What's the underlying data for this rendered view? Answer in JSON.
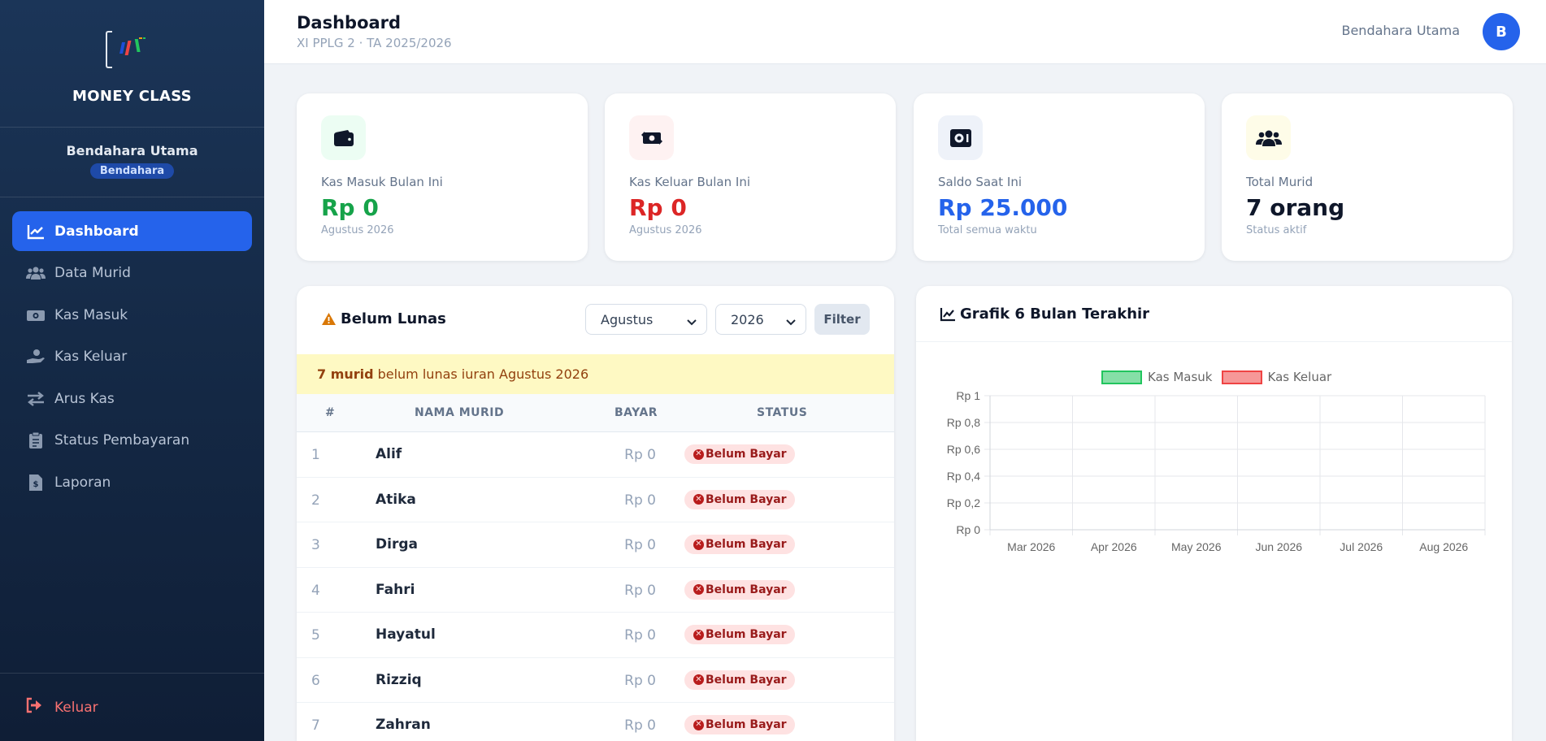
{
  "app": {
    "brand": "MONEY CLASS",
    "user_name": "Bendahara Utama",
    "role": "Bendahara"
  },
  "nav": [
    {
      "label": "Dashboard",
      "icon": "chart-line-icon",
      "active": true
    },
    {
      "label": "Data Murid",
      "icon": "users-icon",
      "active": false
    },
    {
      "label": "Kas Masuk",
      "icon": "money-bill-icon",
      "active": false
    },
    {
      "label": "Kas Keluar",
      "icon": "hand-coin-icon",
      "active": false
    },
    {
      "label": "Arus Kas",
      "icon": "arrows-exchange-icon",
      "active": false
    },
    {
      "label": "Status Pembayaran",
      "icon": "clipboard-check-icon",
      "active": false
    },
    {
      "label": "Laporan",
      "icon": "file-invoice-icon",
      "active": false
    }
  ],
  "logout_label": "Keluar",
  "header": {
    "title": "Dashboard",
    "subtitle": "XI PPLG 2 · TA 2025/2026",
    "user": "Bendahara Utama",
    "avatar_letter": "B"
  },
  "stats": [
    {
      "label": "Kas Masuk Bulan Ini",
      "value": "Rp 0",
      "sub": "Agustus 2026",
      "icon": "wallet-icon",
      "color": "#16a34a",
      "bg": "#ecfdf3"
    },
    {
      "label": "Kas Keluar Bulan Ini",
      "value": "Rp 0",
      "sub": "Agustus 2026",
      "icon": "money-exchange-icon",
      "color": "#dc2626",
      "bg": "#fef2f2"
    },
    {
      "label": "Saldo Saat Ini",
      "value": "Rp 25.000",
      "sub": "Total semua waktu",
      "icon": "vault-icon",
      "color": "#2563eb",
      "bg": "#eef2f9"
    },
    {
      "label": "Total Murid",
      "value": "7 orang",
      "sub": "Status aktif",
      "icon": "users-icon",
      "color": "#0f172a",
      "bg": "#fefce8"
    }
  ],
  "unpaid": {
    "title": "Belum Lunas",
    "month_select": "Agustus",
    "year_select": "2026",
    "filter_label": "Filter",
    "alert_count": "7 murid",
    "alert_text": "belum lunas iuran Agustus 2026",
    "columns": [
      "#",
      "NAMA MURID",
      "BAYAR",
      "STATUS"
    ],
    "rows": [
      {
        "no": "1",
        "name": "Alif",
        "pay": "Rp 0",
        "status": "Belum Bayar"
      },
      {
        "no": "2",
        "name": "Atika",
        "pay": "Rp 0",
        "status": "Belum Bayar"
      },
      {
        "no": "3",
        "name": "Dirga",
        "pay": "Rp 0",
        "status": "Belum Bayar"
      },
      {
        "no": "4",
        "name": "Fahri",
        "pay": "Rp 0",
        "status": "Belum Bayar"
      },
      {
        "no": "5",
        "name": "Hayatul",
        "pay": "Rp 0",
        "status": "Belum Bayar"
      },
      {
        "no": "6",
        "name": "Rizziq",
        "pay": "Rp 0",
        "status": "Belum Bayar"
      },
      {
        "no": "7",
        "name": "Zahran",
        "pay": "Rp 0",
        "status": "Belum Bayar"
      }
    ]
  },
  "chart_panel": {
    "title": "Grafik 6 Bulan Terakhir"
  },
  "chart_data": {
    "type": "bar",
    "categories": [
      "Mar 2026",
      "Apr 2026",
      "May 2026",
      "Jun 2026",
      "Jul 2026",
      "Aug 2026"
    ],
    "series": [
      {
        "name": "Kas Masuk",
        "values": [
          0,
          0,
          0,
          0,
          0,
          0
        ],
        "color": "#22c55e"
      },
      {
        "name": "Kas Keluar",
        "values": [
          0,
          0,
          0,
          0,
          0,
          0
        ],
        "color": "#ef4444"
      }
    ],
    "ylim": [
      0,
      1
    ],
    "yticks": [
      "Rp 0",
      "Rp 0,2",
      "Rp 0,4",
      "Rp 0,6",
      "Rp 0,8",
      "Rp 1"
    ],
    "legend": "top",
    "grid": true
  }
}
